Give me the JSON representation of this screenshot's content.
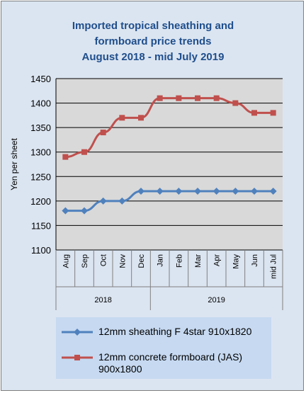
{
  "chart_data": {
    "type": "line",
    "title_lines": [
      "Imported tropical sheathing and",
      "formboard price trends",
      "August 2018 - mid July 2019"
    ],
    "ylabel": "Yen per sheet",
    "ylim": [
      1100,
      1450
    ],
    "yticks": [
      1100,
      1150,
      1200,
      1250,
      1300,
      1350,
      1400,
      1450
    ],
    "grid": true,
    "legend_position": "bottom",
    "categories": [
      "Aug",
      "Sep",
      "Oct",
      "Nov",
      "Dec",
      "Jan",
      "Feb",
      "Mar",
      "Apr",
      "May",
      "Jun",
      "mid Jul"
    ],
    "year_groups": [
      {
        "label": "2018",
        "count": 5
      },
      {
        "label": "2019",
        "count": 7
      }
    ],
    "series": [
      {
        "name": "12mm sheathing F 4star 910x1820",
        "color": "#4f81bd",
        "marker": "diamond",
        "values": [
          1180,
          1180,
          1200,
          1200,
          1220,
          1220,
          1220,
          1220,
          1220,
          1220,
          1220,
          1220
        ]
      },
      {
        "name": "12mm concrete formboard (JAS) 900x1800",
        "color": "#c0504d",
        "marker": "square",
        "values": [
          1290,
          1300,
          1340,
          1370,
          1370,
          1410,
          1410,
          1410,
          1410,
          1400,
          1380,
          1380
        ]
      }
    ]
  }
}
